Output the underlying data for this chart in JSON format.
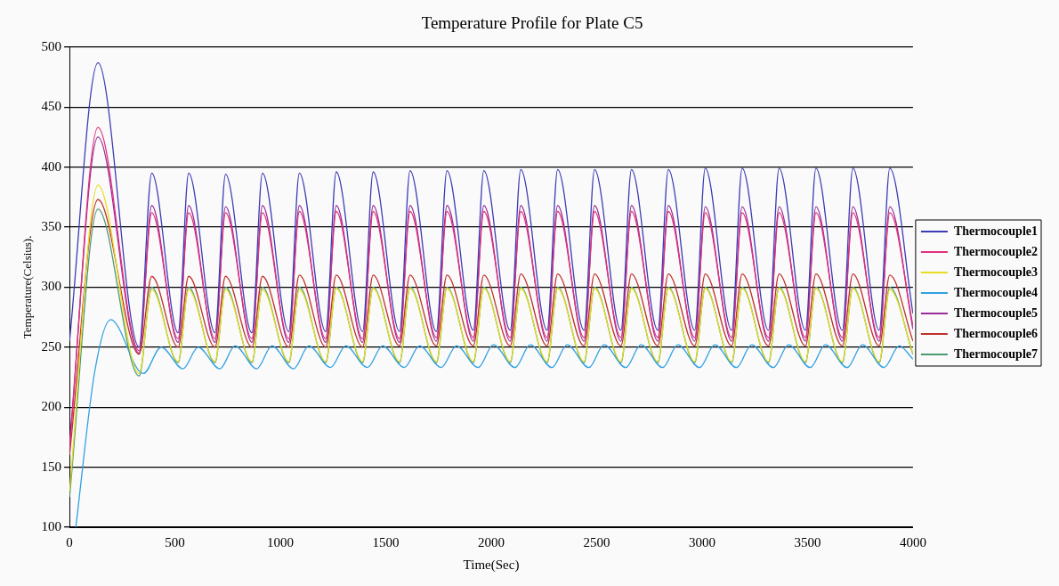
{
  "chart_data": {
    "type": "line",
    "title": "Temperature Profile for Plate C5",
    "xlabel": "Time(Sec)",
    "ylabel": "Temperature(Celsius).",
    "x": [
      0,
      135,
      330,
      390,
      515,
      565,
      690,
      740,
      865,
      915,
      1040,
      1090,
      1215,
      1265,
      1390,
      1440,
      1565,
      1615,
      1740,
      1790,
      1915,
      1965,
      2090,
      2140,
      2265,
      2315,
      2440,
      2490,
      2615,
      2665,
      2790,
      2840,
      2965,
      3015,
      3140,
      3190,
      3315,
      3365,
      3490,
      3540,
      3665,
      3715,
      3840,
      3890,
      4000
    ],
    "series": [
      {
        "name": "Thermocouple1",
        "color": "#3b3bb5",
        "values": [
          255,
          487,
          250,
          395,
          262,
          395,
          262,
          394,
          262,
          395,
          263,
          395,
          263,
          396,
          263,
          396,
          263,
          397,
          263,
          397,
          264,
          397,
          264,
          398,
          264,
          398,
          264,
          398,
          264,
          398,
          264,
          398,
          264,
          399,
          264,
          399,
          264,
          399,
          264,
          399,
          264,
          399,
          264,
          399,
          278
        ]
      },
      {
        "name": "Thermocouple2",
        "color": "#e0307a",
        "values": [
          165,
          433,
          247,
          362,
          257,
          362,
          257,
          362,
          257,
          362,
          257,
          363,
          257,
          363,
          257,
          363,
          257,
          363,
          258,
          363,
          258,
          363,
          258,
          363,
          258,
          363,
          258,
          363,
          258,
          363,
          258,
          363,
          258,
          362,
          258,
          362,
          258,
          362,
          258,
          362,
          258,
          362,
          258,
          362,
          268
        ]
      },
      {
        "name": "Thermocouple3",
        "color": "#e8dc20",
        "values": [
          130,
          385,
          228,
          298,
          238,
          298,
          238,
          298,
          238,
          298,
          238,
          298,
          238,
          299,
          238,
          299,
          238,
          299,
          238,
          299,
          238,
          299,
          238,
          299,
          238,
          299,
          238,
          299,
          238,
          299,
          238,
          299,
          238,
          299,
          238,
          299,
          238,
          299,
          238,
          299,
          238,
          299,
          238,
          298,
          245
        ]
      },
      {
        "name": "Thermocouple4",
        "color": "#30a0e0",
        "x": [
          30,
          120,
          195,
          350,
          435,
          538,
          610,
          713,
          785,
          888,
          960,
          1063,
          1135,
          1238,
          1310,
          1413,
          1485,
          1588,
          1660,
          1763,
          1835,
          1938,
          2010,
          2113,
          2185,
          2288,
          2360,
          2463,
          2535,
          2638,
          2710,
          2813,
          2885,
          2988,
          3060,
          3163,
          3235,
          3338,
          3410,
          3513,
          3585,
          3688,
          3760,
          3863,
          3935,
          4000
        ],
        "values": [
          100,
          230,
          273,
          228,
          250,
          232,
          250,
          232,
          251,
          232,
          251,
          232,
          251,
          233,
          251,
          233,
          251,
          233,
          251,
          233,
          251,
          233,
          252,
          233,
          252,
          233,
          252,
          233,
          252,
          233,
          252,
          233,
          252,
          233,
          252,
          233,
          252,
          233,
          252,
          233,
          252,
          233,
          252,
          233,
          251,
          240
        ]
      },
      {
        "name": "Thermocouple5",
        "color": "#9a2a9a",
        "values": [
          170,
          425,
          245,
          368,
          254,
          368,
          254,
          367,
          254,
          368,
          254,
          368,
          254,
          368,
          254,
          368,
          254,
          368,
          255,
          368,
          255,
          368,
          255,
          368,
          255,
          368,
          255,
          368,
          255,
          368,
          255,
          368,
          255,
          367,
          255,
          367,
          255,
          367,
          255,
          367,
          255,
          367,
          255,
          367,
          265
        ]
      },
      {
        "name": "Thermocouple6",
        "color": "#c0302a",
        "values": [
          160,
          373,
          244,
          309,
          250,
          309,
          250,
          309,
          250,
          309,
          250,
          310,
          250,
          310,
          250,
          310,
          251,
          310,
          251,
          310,
          251,
          310,
          251,
          311,
          251,
          311,
          251,
          311,
          251,
          311,
          251,
          311,
          251,
          311,
          251,
          311,
          251,
          311,
          251,
          311,
          251,
          311,
          251,
          310,
          255
        ]
      },
      {
        "name": "Thermocouple7",
        "color": "#4a9a70",
        "values": [
          125,
          365,
          226,
          300,
          237,
          300,
          237,
          300,
          237,
          300,
          237,
          300,
          237,
          300,
          237,
          300,
          237,
          300,
          237,
          300,
          237,
          300,
          237,
          300,
          237,
          300,
          237,
          300,
          237,
          300,
          237,
          300,
          237,
          300,
          237,
          300,
          237,
          300,
          237,
          300,
          237,
          300,
          237,
          300,
          244
        ]
      }
    ],
    "xlim": [
      0,
      4000
    ],
    "xticks": [
      0,
      500,
      1000,
      1500,
      2000,
      2500,
      3000,
      3500,
      4000
    ],
    "ylim": [
      100,
      500
    ],
    "yticks": [
      100,
      150,
      200,
      250,
      300,
      350,
      400,
      450,
      500
    ],
    "grid": "y",
    "legend": "right",
    "marker": "none",
    "line_style": "solid"
  }
}
